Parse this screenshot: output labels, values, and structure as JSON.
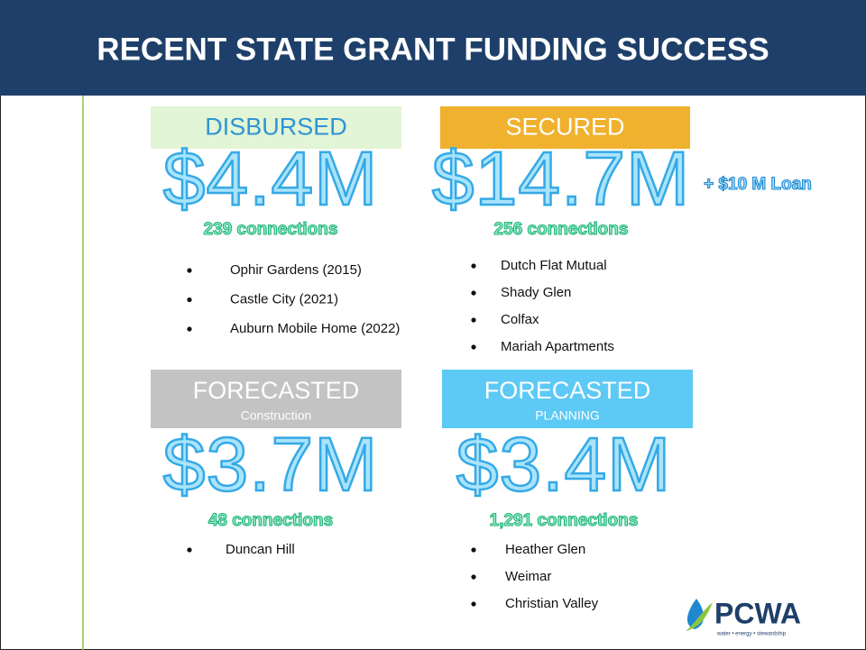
{
  "header": {
    "title": "RECENT STATE GRANT FUNDING SUCCESS"
  },
  "panels": [
    {
      "label": "DISBURSED",
      "amount": "$4.4M",
      "connections": "239 connections",
      "items": [
        "Ophir Gardens (2015)",
        "Castle City (2021)",
        "Auburn Mobile Home (2022)"
      ]
    },
    {
      "label": "SECURED",
      "amount": "$14.7M",
      "extra": "+ $10 M Loan",
      "connections": "256 connections",
      "items": [
        "Dutch Flat Mutual",
        "Shady Glen",
        "Colfax",
        "Mariah Apartments"
      ]
    },
    {
      "label": "FORECASTED",
      "sublabel": "Construction",
      "amount": "$3.7M",
      "connections": "48 connections",
      "items": [
        "Duncan Hill"
      ]
    },
    {
      "label": "FORECASTED",
      "sublabel": "PLANNING",
      "amount": "$3.4M",
      "connections": "1,291 connections",
      "items": [
        "Heather Glen",
        "Weimar",
        "Christian Valley"
      ]
    }
  ],
  "logo": {
    "name": "PCWA",
    "tagline": "water • energy • stewardship"
  }
}
